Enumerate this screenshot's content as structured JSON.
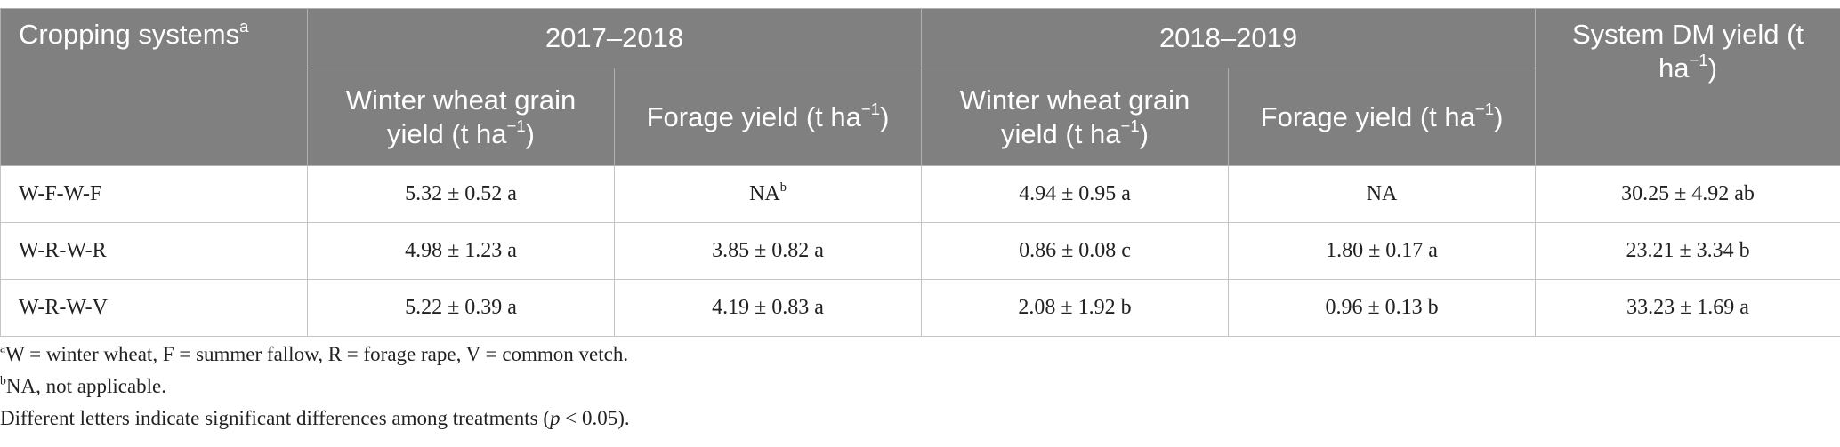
{
  "table": {
    "header": {
      "systems": {
        "text": "Cropping systems",
        "sup": "a"
      },
      "period1": "2017–2018",
      "period2": "2018–2019",
      "system": {
        "text": "System DM yield (t ha",
        "sup": "−1",
        "after": ")"
      },
      "sub": [
        {
          "text": "Winter wheat grain yield (t ha",
          "sup": "−1",
          "after": ")"
        },
        {
          "text": "Forage yield (t ha",
          "sup": "−1",
          "after": ")"
        },
        {
          "text": "Winter wheat grain yield (t ha",
          "sup": "−1",
          "after": ")"
        },
        {
          "text": "Forage yield (t ha",
          "sup": "−1",
          "after": ")"
        }
      ]
    },
    "rows": [
      [
        "W-F-W-F",
        "5.32 ± 0.52 a",
        {
          "text": "NA",
          "sup": "b"
        },
        "4.94 ± 0.95 a",
        "NA",
        "30.25 ± 4.92 ab"
      ],
      [
        "W-R-W-R",
        "4.98 ± 1.23 a",
        "3.85 ± 0.82 a",
        "0.86 ± 0.08 c",
        "1.80 ± 0.17 a",
        "23.21 ± 3.34 b"
      ],
      [
        "W-R-W-V",
        "5.22 ± 0.39 a",
        "4.19 ± 0.83 a",
        "2.08 ± 1.92 b",
        "0.96 ± 0.13 b",
        "33.23 ± 1.69 a"
      ]
    ]
  },
  "footnotes": [
    {
      "mark": "a",
      "text": "W = winter wheat, F = summer fallow, R = forage rape, V = common vetch."
    },
    {
      "mark": "b",
      "text": "NA, not applicable."
    },
    {
      "parts": [
        "Different letters indicate significant differences among treatments (",
        "p",
        " < 0.05)."
      ]
    }
  ]
}
